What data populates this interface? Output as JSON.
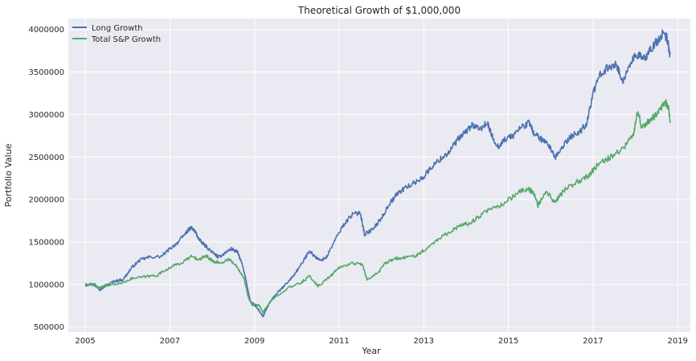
{
  "chart_data": {
    "type": "line",
    "title": "Theoretical Growth of $1,000,000",
    "xlabel": "Year",
    "ylabel": "Portfolio Value",
    "xlim": [
      2004.6,
      2019.3
    ],
    "ylim": [
      440000,
      4130000
    ],
    "x_ticks": [
      2005,
      2007,
      2009,
      2011,
      2013,
      2015,
      2017,
      2019
    ],
    "x_tick_labels": [
      "2005",
      "2007",
      "2009",
      "2011",
      "2013",
      "2015",
      "2017",
      "2019"
    ],
    "y_ticks": [
      500000,
      1000000,
      1500000,
      2000000,
      2500000,
      3000000,
      3500000,
      4000000
    ],
    "y_tick_labels": [
      "500000",
      "1000000",
      "1500000",
      "2000000",
      "2500000",
      "3000000",
      "3500000",
      "4000000"
    ],
    "grid": true,
    "legend_position": "top-left",
    "series": [
      {
        "name": "Long Growth",
        "color": "#4c72b0",
        "points": [
          [
            2005.0,
            990000
          ],
          [
            2005.2,
            1010000
          ],
          [
            2005.35,
            940000
          ],
          [
            2005.5,
            990000
          ],
          [
            2005.7,
            1040000
          ],
          [
            2005.9,
            1060000
          ],
          [
            2006.1,
            1200000
          ],
          [
            2006.3,
            1290000
          ],
          [
            2006.5,
            1320000
          ],
          [
            2006.8,
            1330000
          ],
          [
            2007.0,
            1420000
          ],
          [
            2007.2,
            1500000
          ],
          [
            2007.4,
            1620000
          ],
          [
            2007.5,
            1670000
          ],
          [
            2007.6,
            1620000
          ],
          [
            2007.7,
            1520000
          ],
          [
            2007.85,
            1450000
          ],
          [
            2008.0,
            1380000
          ],
          [
            2008.15,
            1320000
          ],
          [
            2008.3,
            1370000
          ],
          [
            2008.45,
            1420000
          ],
          [
            2008.6,
            1380000
          ],
          [
            2008.7,
            1250000
          ],
          [
            2008.8,
            1050000
          ],
          [
            2008.9,
            800000
          ],
          [
            2009.0,
            760000
          ],
          [
            2009.1,
            700000
          ],
          [
            2009.2,
            620000
          ],
          [
            2009.35,
            780000
          ],
          [
            2009.5,
            880000
          ],
          [
            2009.7,
            980000
          ],
          [
            2009.9,
            1090000
          ],
          [
            2010.1,
            1230000
          ],
          [
            2010.3,
            1400000
          ],
          [
            2010.4,
            1340000
          ],
          [
            2010.55,
            1280000
          ],
          [
            2010.7,
            1320000
          ],
          [
            2010.9,
            1520000
          ],
          [
            2011.1,
            1700000
          ],
          [
            2011.3,
            1820000
          ],
          [
            2011.5,
            1850000
          ],
          [
            2011.6,
            1590000
          ],
          [
            2011.8,
            1650000
          ],
          [
            2012.0,
            1780000
          ],
          [
            2012.2,
            1960000
          ],
          [
            2012.4,
            2080000
          ],
          [
            2012.6,
            2150000
          ],
          [
            2012.8,
            2200000
          ],
          [
            2013.0,
            2270000
          ],
          [
            2013.2,
            2390000
          ],
          [
            2013.4,
            2480000
          ],
          [
            2013.6,
            2560000
          ],
          [
            2013.8,
            2700000
          ],
          [
            2014.0,
            2800000
          ],
          [
            2014.15,
            2880000
          ],
          [
            2014.3,
            2820000
          ],
          [
            2014.5,
            2900000
          ],
          [
            2014.6,
            2760000
          ],
          [
            2014.75,
            2620000
          ],
          [
            2014.9,
            2700000
          ],
          [
            2015.1,
            2750000
          ],
          [
            2015.3,
            2850000
          ],
          [
            2015.5,
            2900000
          ],
          [
            2015.6,
            2780000
          ],
          [
            2015.8,
            2700000
          ],
          [
            2016.0,
            2600000
          ],
          [
            2016.1,
            2480000
          ],
          [
            2016.3,
            2640000
          ],
          [
            2016.5,
            2750000
          ],
          [
            2016.7,
            2800000
          ],
          [
            2016.85,
            2900000
          ],
          [
            2017.0,
            3250000
          ],
          [
            2017.2,
            3500000
          ],
          [
            2017.4,
            3560000
          ],
          [
            2017.55,
            3600000
          ],
          [
            2017.7,
            3370000
          ],
          [
            2017.9,
            3640000
          ],
          [
            2018.1,
            3700000
          ],
          [
            2018.2,
            3650000
          ],
          [
            2018.3,
            3720000
          ],
          [
            2018.5,
            3850000
          ],
          [
            2018.65,
            3950000
          ],
          [
            2018.75,
            3900000
          ],
          [
            2018.82,
            3700000
          ]
        ]
      },
      {
        "name": "Total S&P Growth",
        "color": "#55a868",
        "points": [
          [
            2005.0,
            1000000
          ],
          [
            2005.2,
            990000
          ],
          [
            2005.35,
            960000
          ],
          [
            2005.5,
            990000
          ],
          [
            2005.8,
            1010000
          ],
          [
            2006.1,
            1070000
          ],
          [
            2006.4,
            1090000
          ],
          [
            2006.7,
            1110000
          ],
          [
            2007.0,
            1200000
          ],
          [
            2007.3,
            1260000
          ],
          [
            2007.5,
            1330000
          ],
          [
            2007.7,
            1290000
          ],
          [
            2007.85,
            1340000
          ],
          [
            2008.0,
            1280000
          ],
          [
            2008.2,
            1250000
          ],
          [
            2008.4,
            1300000
          ],
          [
            2008.6,
            1200000
          ],
          [
            2008.75,
            1080000
          ],
          [
            2008.85,
            850000
          ],
          [
            2008.95,
            760000
          ],
          [
            2009.1,
            760000
          ],
          [
            2009.2,
            670000
          ],
          [
            2009.35,
            780000
          ],
          [
            2009.5,
            860000
          ],
          [
            2009.8,
            960000
          ],
          [
            2010.1,
            1020000
          ],
          [
            2010.3,
            1100000
          ],
          [
            2010.5,
            980000
          ],
          [
            2010.8,
            1100000
          ],
          [
            2011.0,
            1200000
          ],
          [
            2011.3,
            1250000
          ],
          [
            2011.55,
            1240000
          ],
          [
            2011.65,
            1060000
          ],
          [
            2011.9,
            1130000
          ],
          [
            2012.1,
            1250000
          ],
          [
            2012.3,
            1300000
          ],
          [
            2012.5,
            1310000
          ],
          [
            2012.8,
            1340000
          ],
          [
            2013.0,
            1400000
          ],
          [
            2013.3,
            1520000
          ],
          [
            2013.6,
            1620000
          ],
          [
            2013.9,
            1700000
          ],
          [
            2014.1,
            1720000
          ],
          [
            2014.3,
            1800000
          ],
          [
            2014.6,
            1890000
          ],
          [
            2014.8,
            1920000
          ],
          [
            2015.0,
            2000000
          ],
          [
            2015.3,
            2100000
          ],
          [
            2015.5,
            2120000
          ],
          [
            2015.6,
            2070000
          ],
          [
            2015.7,
            1930000
          ],
          [
            2015.9,
            2090000
          ],
          [
            2016.1,
            1960000
          ],
          [
            2016.3,
            2100000
          ],
          [
            2016.6,
            2200000
          ],
          [
            2016.9,
            2280000
          ],
          [
            2017.1,
            2400000
          ],
          [
            2017.4,
            2500000
          ],
          [
            2017.7,
            2600000
          ],
          [
            2017.95,
            2750000
          ],
          [
            2018.05,
            3050000
          ],
          [
            2018.15,
            2850000
          ],
          [
            2018.3,
            2920000
          ],
          [
            2018.5,
            3000000
          ],
          [
            2018.7,
            3150000
          ],
          [
            2018.78,
            3100000
          ],
          [
            2018.82,
            2900000
          ]
        ]
      }
    ]
  }
}
